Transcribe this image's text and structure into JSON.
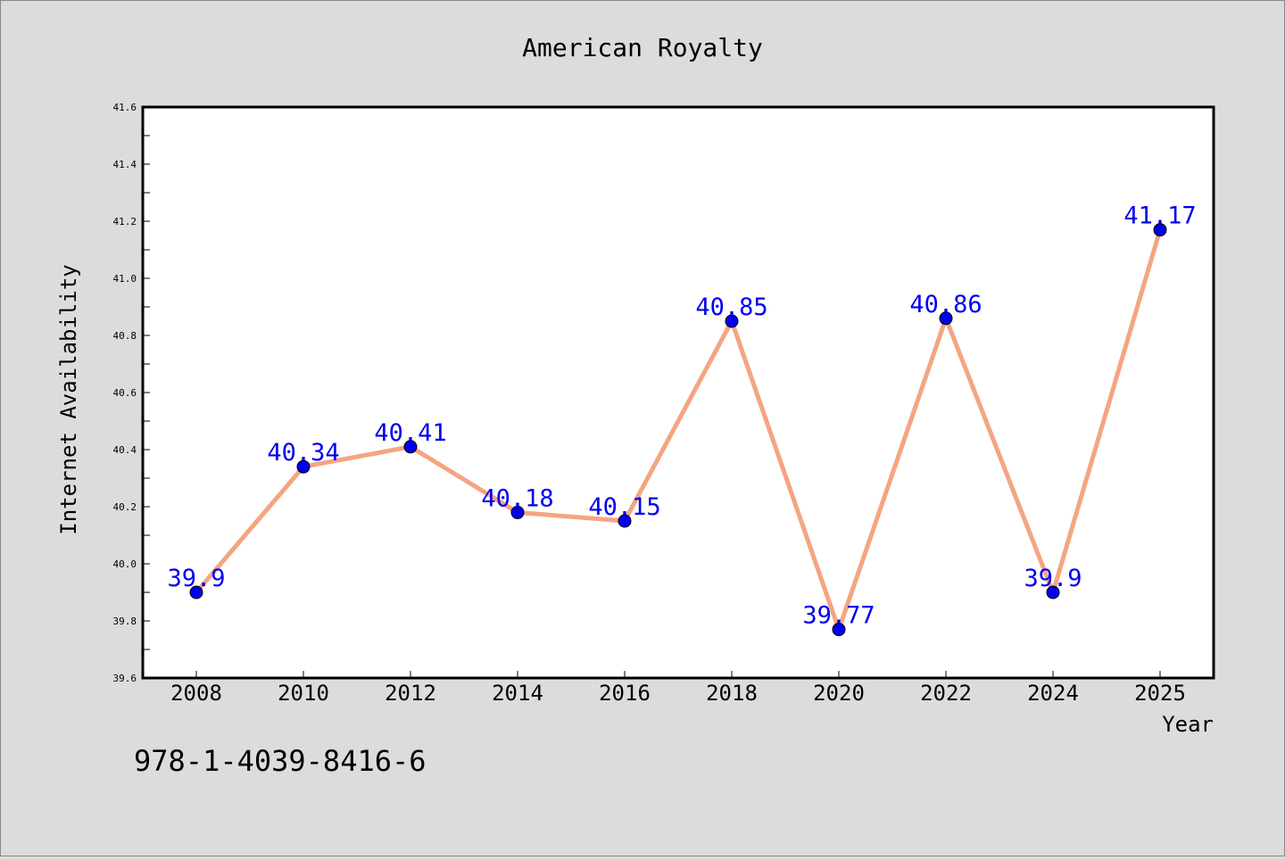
{
  "chart_data": {
    "type": "line",
    "title": "American Royalty",
    "xlabel": "Year",
    "ylabel": "Internet Availability",
    "x": [
      "2008",
      "2010",
      "2012",
      "2014",
      "2016",
      "2018",
      "2020",
      "2022",
      "2024",
      "2025"
    ],
    "series": [
      {
        "values": [
          39.9,
          40.34,
          40.41,
          40.18,
          40.15,
          40.85,
          39.77,
          40.86,
          39.9,
          41.17
        ],
        "labels": [
          "39.9",
          "40.34",
          "40.41",
          "40.18",
          "40.15",
          "40.85",
          "39.77",
          "40.86",
          "39.9",
          "41.17"
        ],
        "line_color": "#f4a582",
        "marker_color": "#0000ee"
      }
    ],
    "ylim": [
      39.6,
      41.6
    ],
    "yticks": [
      "39.6",
      "39.8",
      "40.0",
      "40.2",
      "40.4",
      "40.6",
      "40.8",
      "41.0",
      "41.2",
      "41.4",
      "41.6"
    ],
    "grid": false,
    "label_color": "#0000ee"
  },
  "footer": {
    "isbn": "978-1-4039-8416-6"
  }
}
